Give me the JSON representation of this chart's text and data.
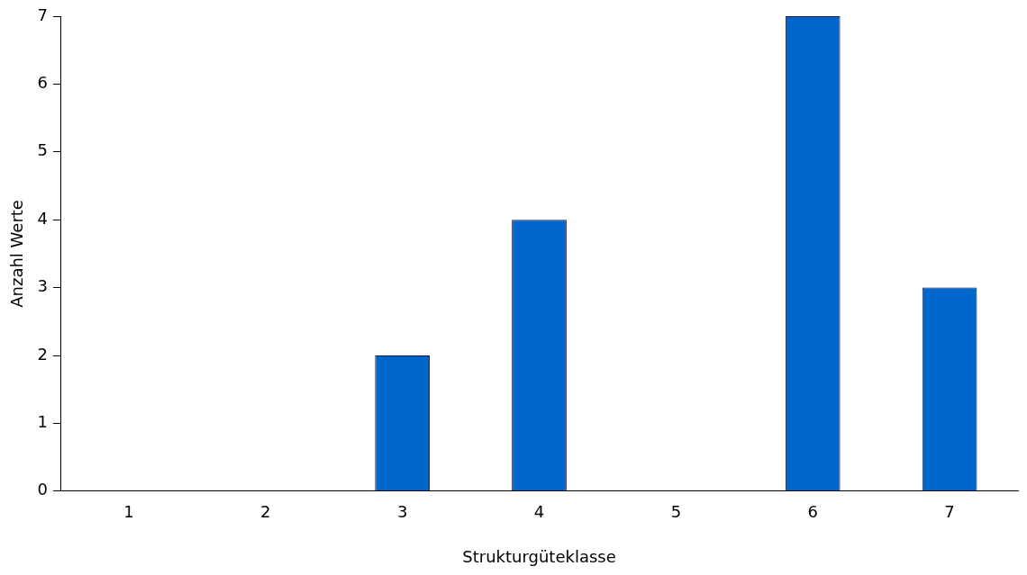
{
  "chart_data": {
    "type": "bar",
    "xlabel": "Strukturgüteklasse",
    "ylabel": "Anzahl Werte",
    "categories": [
      "1",
      "2",
      "3",
      "4",
      "5",
      "6",
      "7"
    ],
    "values": [
      0,
      0,
      2,
      4,
      0,
      7,
      3
    ],
    "color": "#0066cc",
    "ylim": [
      0,
      7
    ],
    "yticks": [
      0,
      1,
      2,
      3,
      4,
      5,
      6,
      7
    ],
    "grid": false,
    "legend": false
  }
}
